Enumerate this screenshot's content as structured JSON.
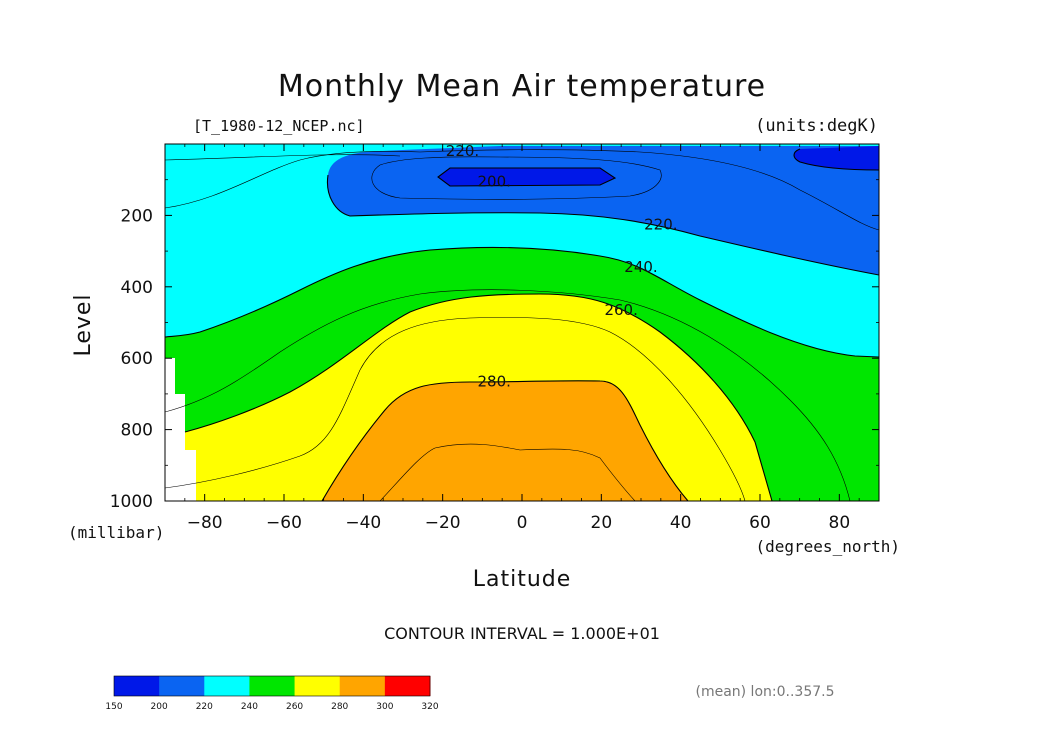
{
  "chart_data": {
    "type": "contour",
    "title": "Monthly Mean Air temperature",
    "subtitle_left": "[T_1980-12_NCEP.nc]",
    "subtitle_right": "(units:degK)",
    "xlabel": "Latitude",
    "ylabel": "Level",
    "x_units": "(degrees_north)",
    "y_units": "(millibar)",
    "xlim": [
      -90,
      90
    ],
    "ylim": [
      1000,
      0
    ],
    "x_ticks": [
      -80,
      -60,
      -40,
      -20,
      0,
      20,
      40,
      60,
      80
    ],
    "x_tick_labels": [
      "−80",
      "−60",
      "−40",
      "−20",
      "0",
      "20",
      "40",
      "60",
      "80"
    ],
    "y_ticks": [
      200,
      400,
      600,
      800,
      1000
    ],
    "y_tick_labels": [
      "200",
      "400",
      "600",
      "800",
      "1000"
    ],
    "contour_interval_text": "CONTOUR INTERVAL = 1.000E+01",
    "contour_labels": [
      {
        "text": "220.",
        "lat": -15,
        "level": 20
      },
      {
        "text": "200.",
        "lat": -7,
        "level": 105
      },
      {
        "text": "220.",
        "lat": 35,
        "level": 225
      },
      {
        "text": "240.",
        "lat": 30,
        "level": 345
      },
      {
        "text": "260.",
        "lat": 25,
        "level": 465
      },
      {
        "text": "280.",
        "lat": -7,
        "level": 665
      }
    ],
    "colorbar": {
      "boundaries": [
        "150",
        "200",
        "220",
        "240",
        "260",
        "280",
        "300",
        "320"
      ],
      "colors": [
        "#0018e8",
        "#0a64f2",
        "#00ffff",
        "#00e600",
        "#ffff00",
        "#ffa500",
        "#ff0000"
      ]
    },
    "footnote": "(mean) lon:0..357.5",
    "colors": {
      "t200": "#0018e8",
      "t220": "#0a64f2",
      "t240": "#00ffff",
      "t260": "#00e600",
      "t280": "#ffff00",
      "t300": "#ffa500"
    }
  }
}
